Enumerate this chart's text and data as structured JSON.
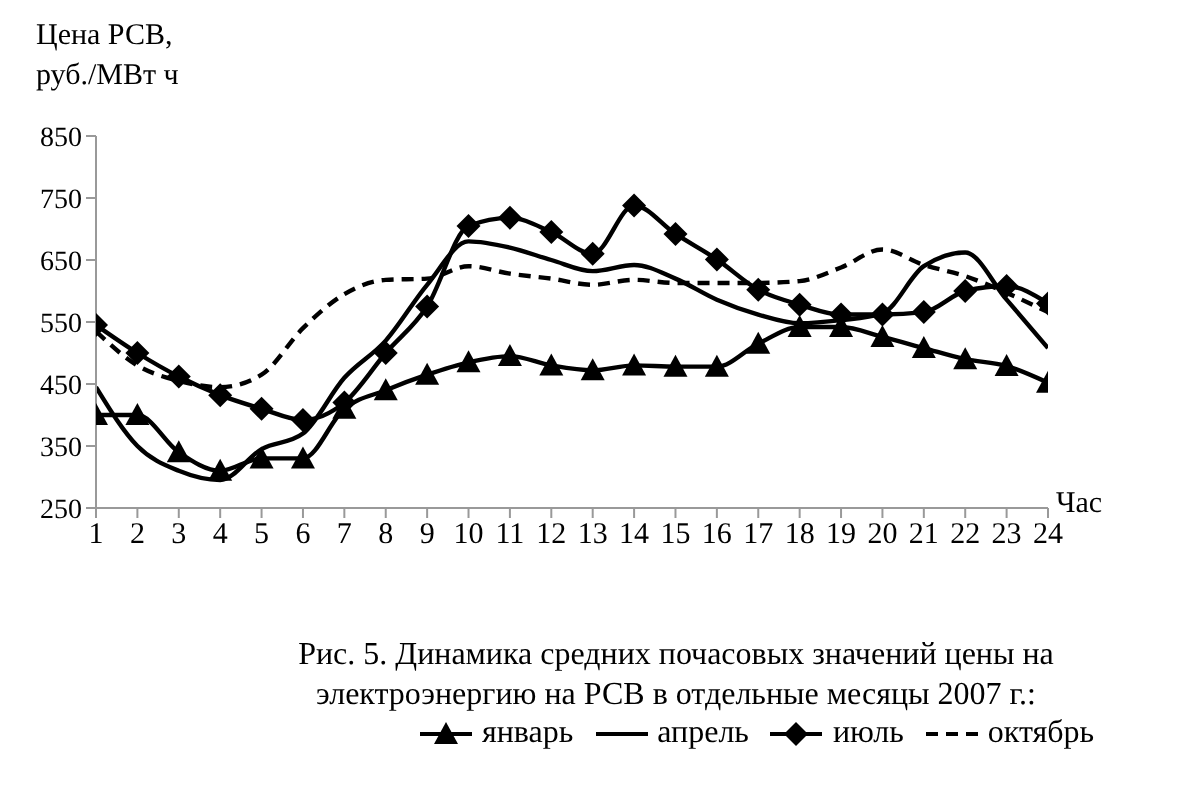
{
  "chart_data": {
    "type": "line",
    "title": "Рис. 5. Динамика средних почасовых значений цены на электроэнергию на РСВ в отдельные месяцы 2007 г.:",
    "ylabel": "Цена РСВ, руб./МВт ч",
    "xlabel": "Час",
    "x": [
      1,
      2,
      3,
      4,
      5,
      6,
      7,
      8,
      9,
      10,
      11,
      12,
      13,
      14,
      15,
      16,
      17,
      18,
      19,
      20,
      21,
      22,
      23,
      24
    ],
    "xlim": [
      1,
      24
    ],
    "xticks": [
      1,
      2,
      3,
      4,
      5,
      6,
      7,
      8,
      9,
      10,
      11,
      12,
      13,
      14,
      15,
      16,
      17,
      18,
      19,
      20,
      21,
      22,
      23,
      24
    ],
    "ylim": [
      250,
      850
    ],
    "yticks": [
      250,
      350,
      450,
      550,
      650,
      750,
      850
    ],
    "grid": false,
    "legend": "bottom",
    "series": [
      {
        "name": "январь",
        "color": "#000000",
        "marker": "triangle",
        "line_style": "solid",
        "values": [
          400,
          400,
          340,
          310,
          330,
          330,
          410,
          440,
          465,
          485,
          495,
          480,
          472,
          480,
          478,
          478,
          515,
          542,
          542,
          526,
          508,
          490,
          479,
          452
        ]
      },
      {
        "name": "апрель",
        "color": "#000000",
        "marker": "none",
        "line_style": "solid",
        "values": [
          445,
          350,
          310,
          295,
          345,
          370,
          460,
          520,
          610,
          680,
          670,
          650,
          632,
          642,
          620,
          586,
          562,
          548,
          553,
          564,
          640,
          662,
          586,
          508
        ]
      },
      {
        "name": "июль",
        "color": "#000000",
        "marker": "diamond",
        "line_style": "solid",
        "values": [
          545,
          500,
          462,
          432,
          410,
          392,
          420,
          500,
          575,
          705,
          718,
          695,
          660,
          738,
          692,
          651,
          602,
          578,
          562,
          562,
          566,
          600,
          608,
          580
        ]
      },
      {
        "name": "октябрь",
        "color": "#000000",
        "marker": "none",
        "line_style": "dashed",
        "values": [
          535,
          480,
          455,
          445,
          465,
          540,
          595,
          618,
          620,
          640,
          628,
          620,
          610,
          618,
          613,
          613,
          613,
          616,
          638,
          667,
          642,
          624,
          597,
          566
        ]
      }
    ]
  }
}
